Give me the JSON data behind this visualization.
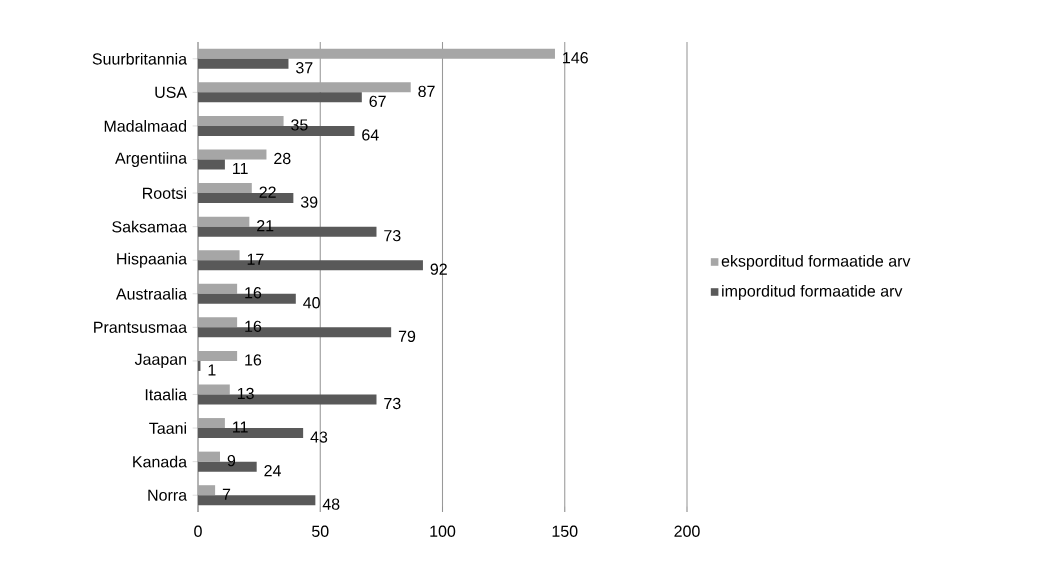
{
  "chart_data": {
    "type": "bar",
    "orientation": "horizontal",
    "categories": [
      "Suurbritannia",
      "USA",
      "Madalmaad",
      "Argentiina",
      "Rootsi",
      "Saksamaa",
      "Hispaania",
      "Austraalia",
      "Prantsusmaa",
      "Jaapan",
      "Itaalia",
      "Taani",
      "Kanada",
      "Norra"
    ],
    "series": [
      {
        "name": "eksporditud formaatide arv",
        "color": "#a6a6a6",
        "values": [
          146,
          87,
          35,
          28,
          22,
          21,
          17,
          16,
          16,
          16,
          13,
          11,
          9,
          7
        ]
      },
      {
        "name": "imporditud formaatide arv",
        "color": "#595959",
        "values": [
          37,
          67,
          64,
          11,
          39,
          73,
          92,
          40,
          79,
          1,
          73,
          43,
          24,
          48
        ]
      }
    ],
    "xlim": [
      0,
      200
    ],
    "xticks": [
      0,
      50,
      100,
      150,
      200
    ],
    "grid": "x",
    "legend": "right",
    "data_labels": true
  }
}
